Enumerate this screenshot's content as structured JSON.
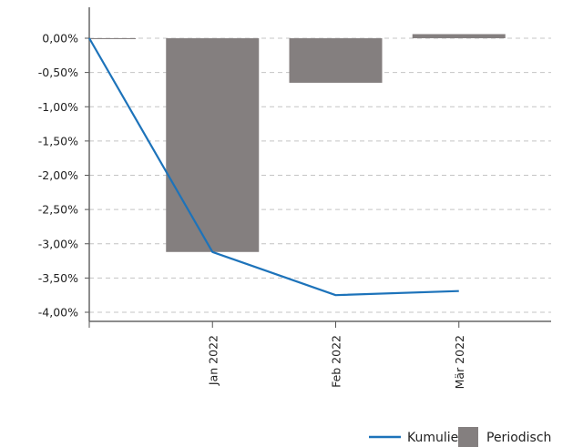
{
  "chart_data": {
    "type": "bar+line",
    "categories": [
      "",
      "Jan 2022",
      "Feb 2022",
      "Mär 2022"
    ],
    "series": [
      {
        "name": "Periodisch",
        "type": "bar",
        "values": [
          0.0,
          -3.12,
          -0.65,
          0.06
        ],
        "color": "#847f7f"
      },
      {
        "name": "Kumuliert",
        "type": "line",
        "values": [
          0.0,
          -3.12,
          -3.75,
          -3.69
        ],
        "color": "#1d73ba"
      }
    ],
    "y_ticks": [
      "0,00%",
      "-0,50%",
      "-1,00%",
      "-1,50%",
      "-2,00%",
      "-2,50%",
      "-3,00%",
      "-3,50%",
      "-4,00%"
    ],
    "x_ticks": [
      "Jan 2022",
      "Feb 2022",
      "Mär 2022"
    ],
    "ylim": [
      -4.0,
      0.0
    ],
    "grid": true,
    "legend_position": "bottom-right"
  }
}
